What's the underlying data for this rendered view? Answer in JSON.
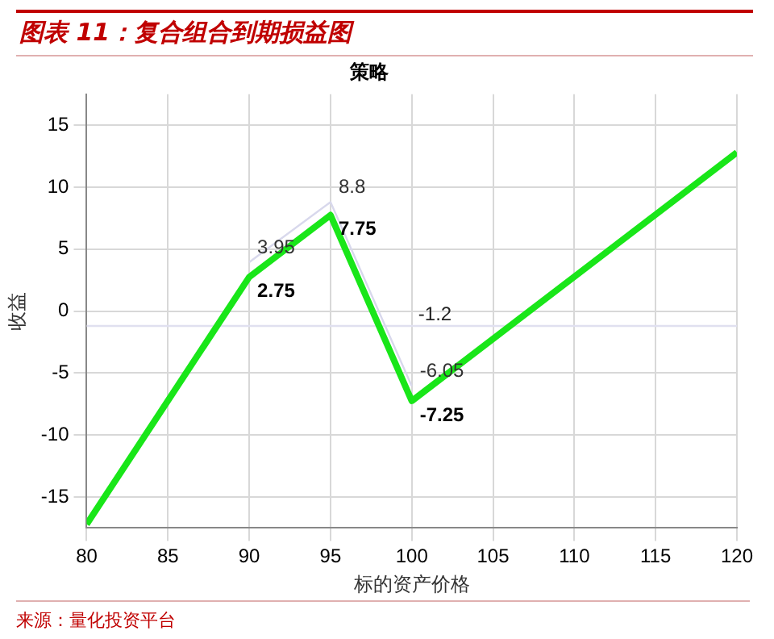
{
  "chart_data": {
    "type": "line",
    "title": "图表 11：复合组合到期损益图",
    "subtitle": "策略",
    "xlabel": "标的资产价格",
    "ylabel": "收益",
    "x": [
      80,
      90,
      95,
      100,
      120
    ],
    "series": [
      {
        "color": "#19e619",
        "values": [
          -17.2,
          2.75,
          7.75,
          -7.25,
          12.8
        ],
        "value_labels": [
          null,
          "2.75",
          "7.75",
          "-7.25",
          null
        ]
      },
      {
        "color": "#d8d8ec",
        "x": [
          90,
          95,
          100
        ],
        "values": [
          3.95,
          8.8,
          -6.05
        ],
        "value_labels": [
          "3.95",
          "8.8",
          "-6.05"
        ]
      }
    ],
    "xlim": [
      80,
      120
    ],
    "xticks": [
      80,
      85,
      90,
      95,
      100,
      105,
      110,
      115,
      120
    ],
    "ylim": [
      -17.5,
      17.5
    ],
    "yticks": [
      -15,
      -10,
      -5,
      0,
      5,
      10,
      15
    ],
    "ref_lines": [
      {
        "axis": "y",
        "value": -1.2,
        "label": "-1.2",
        "color": "#e0e0f0"
      }
    ],
    "grid": true,
    "legend": false,
    "marker": "none",
    "line_style": "solid",
    "annotations": [
      "来源：量化投资平台"
    ]
  }
}
